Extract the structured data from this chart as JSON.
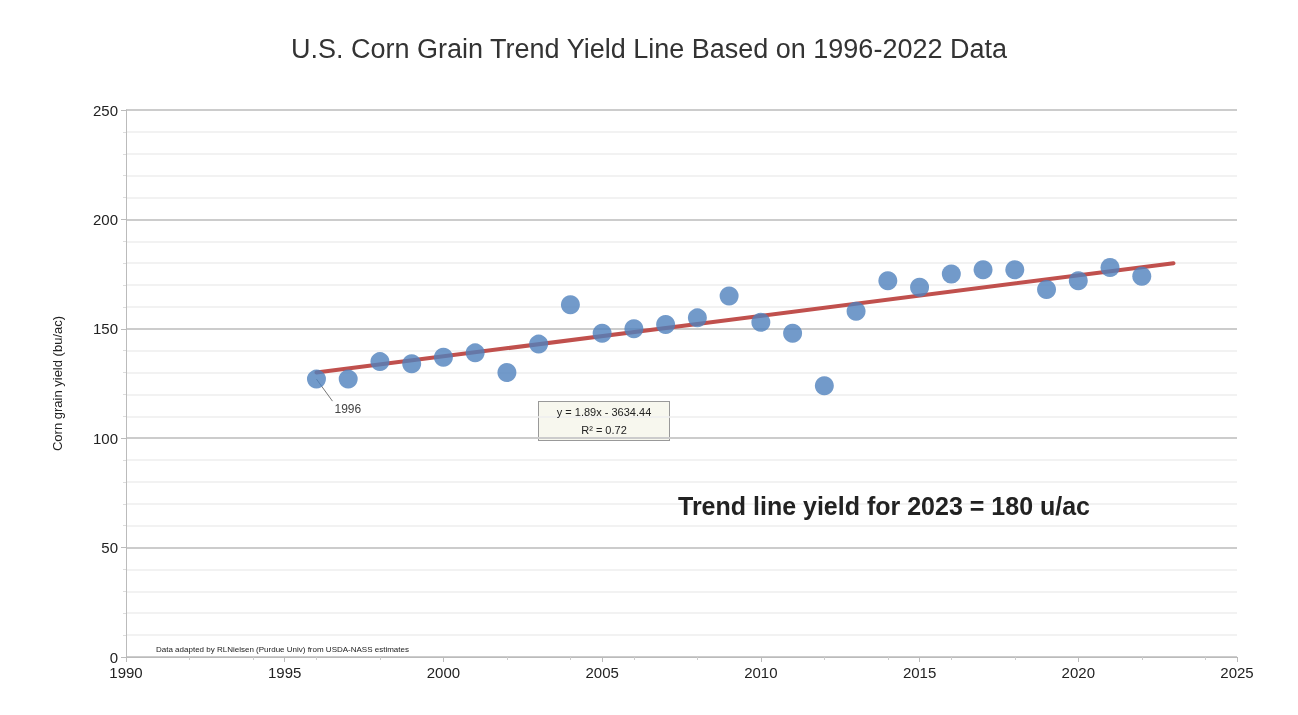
{
  "chart_data": {
    "type": "scatter",
    "title": "U.S. Corn Grain Trend Yield Line Based on 1996-2022 Data",
    "ylabel": "Corn grain yield (bu/ac)",
    "x": [
      1996,
      1997,
      1998,
      1999,
      2000,
      2001,
      2002,
      2003,
      2004,
      2005,
      2006,
      2007,
      2008,
      2009,
      2010,
      2011,
      2012,
      2013,
      2014,
      2015,
      2016,
      2017,
      2018,
      2019,
      2020,
      2021,
      2022
    ],
    "series": [
      {
        "color": "#4f81bd",
        "values": [
          127,
          127,
          135,
          134,
          137,
          139,
          130,
          143,
          161,
          148,
          150,
          152,
          155,
          165,
          153,
          148,
          124,
          158,
          172,
          169,
          175,
          177,
          177,
          168,
          172,
          178,
          174
        ]
      },
      {
        "type": "line",
        "color": "#c0504d",
        "marker": "none",
        "x": [
          1996,
          2023
        ],
        "values": [
          130,
          180
        ]
      }
    ],
    "xlim": [
      1990,
      2025
    ],
    "xticks": [
      1990,
      1995,
      2000,
      2005,
      2010,
      2015,
      2020,
      2025
    ],
    "ylim": [
      0,
      250
    ],
    "yticks": [
      0,
      50,
      100,
      150,
      200,
      250
    ],
    "grid": "y",
    "marker": "circle",
    "line_style": "solid",
    "annotations": [
      {
        "text": "1996",
        "x": 1996,
        "y": 127
      },
      "y = 1.89x - 3634.44",
      "R² = 0.72",
      "Trend line yield for 2023 = 180 u/ac",
      "Data adapted by RLNielsen (Purdue Univ) from USDA-NASS estimates"
    ]
  }
}
